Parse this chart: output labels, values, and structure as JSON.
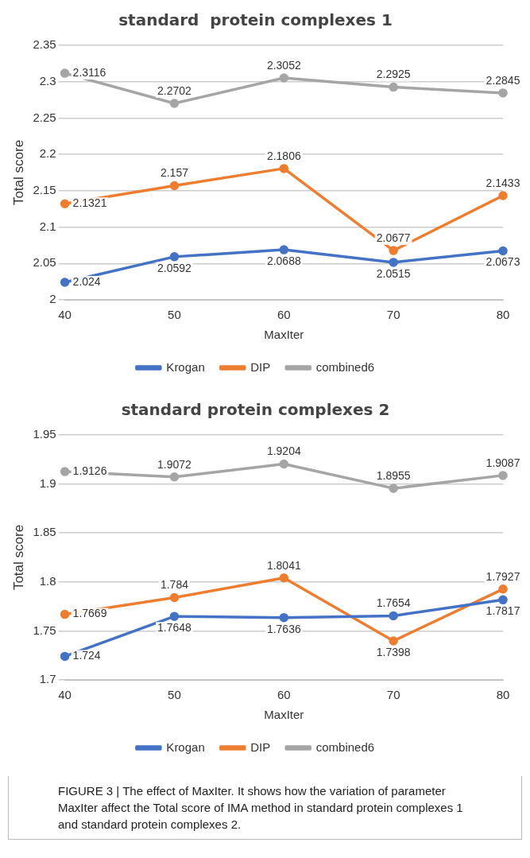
{
  "chart_data": [
    {
      "type": "line",
      "title": "standard  protein complexes 1",
      "xlabel": "MaxIter",
      "ylabel": "Total score",
      "categories": [
        "40",
        "50",
        "60",
        "70",
        "80"
      ],
      "series": [
        {
          "name": "Krogan",
          "color": "#4472c4",
          "values": [
            2.024,
            2.0592,
            2.0688,
            2.0515,
            2.0673
          ]
        },
        {
          "name": "DIP",
          "color": "#ed7d31",
          "values": [
            2.1321,
            2.157,
            2.1806,
            2.0677,
            2.1433
          ]
        },
        {
          "name": "combined6",
          "color": "#a5a5a5",
          "values": [
            2.3116,
            2.2702,
            2.3052,
            2.2925,
            2.2845
          ]
        }
      ],
      "ylim": [
        2,
        2.35
      ],
      "yticks": [
        2,
        2.05,
        2.1,
        2.15,
        2.2,
        2.25,
        2.3,
        2.35
      ],
      "grid": "y",
      "legend": "bottom",
      "marker": "circle",
      "data_labels": true
    },
    {
      "type": "line",
      "title": "standard protein complexes 2",
      "xlabel": "MaxIter",
      "ylabel": "Total score",
      "categories": [
        "40",
        "50",
        "60",
        "70",
        "80"
      ],
      "series": [
        {
          "name": "Krogan",
          "color": "#4472c4",
          "values": [
            1.724,
            1.7648,
            1.7636,
            1.7654,
            1.7817
          ]
        },
        {
          "name": "DIP",
          "color": "#ed7d31",
          "values": [
            1.7669,
            1.784,
            1.8041,
            1.7398,
            1.7927
          ]
        },
        {
          "name": "combined6",
          "color": "#a5a5a5",
          "values": [
            1.9126,
            1.9072,
            1.9204,
            1.8955,
            1.9087
          ]
        }
      ],
      "ylim": [
        1.7,
        1.95
      ],
      "yticks": [
        1.7,
        1.75,
        1.8,
        1.85,
        1.9,
        1.95
      ],
      "grid": "y",
      "legend": "bottom",
      "marker": "circle",
      "data_labels": true,
      "annotations": [
        "FIGURE 3 | The effect of MaxIter. It shows how the variation of parameter MaxIter affect the Total score of IMA method in standard protein complexes 1 and standard protein complexes 2."
      ]
    }
  ]
}
